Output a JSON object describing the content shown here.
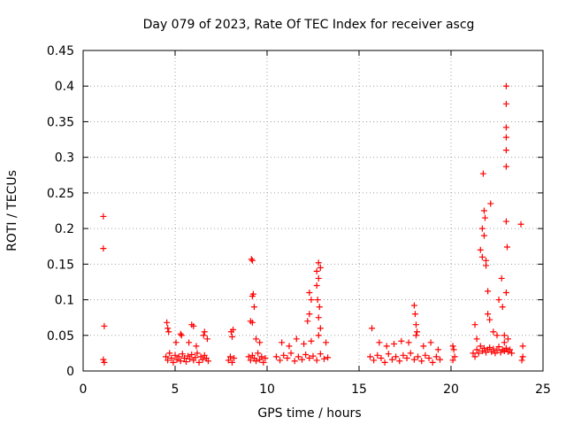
{
  "chart_data": {
    "type": "scatter",
    "title": "Day 079 of 2023, Rate Of TEC Index for receiver ascg",
    "xlabel": "GPS time / hours",
    "ylabel": "ROTI / TECUs",
    "xlim": [
      0,
      25
    ],
    "ylim": [
      0,
      0.45
    ],
    "xticks": [
      "0",
      "5",
      "10",
      "15",
      "20",
      "25"
    ],
    "yticks": [
      "0",
      "0.05",
      "0.1",
      "0.15",
      "0.2",
      "0.25",
      "0.3",
      "0.35",
      "0.4",
      "0.45"
    ],
    "grid": true,
    "marker": "+",
    "color": "#ff0000",
    "series": [
      {
        "x": [
          1.1,
          1.1,
          1.15,
          1.1,
          1.15,
          4.5,
          4.6,
          4.7,
          4.8,
          4.9,
          5.0,
          5.1,
          5.2,
          5.3,
          5.4,
          5.5,
          5.6,
          5.7,
          5.8,
          5.9,
          6.0,
          6.1,
          6.2,
          6.3,
          6.4,
          6.5,
          6.6,
          6.7,
          6.8,
          4.55,
          4.65,
          5.05,
          5.35,
          5.75,
          6.15,
          6.55,
          6.75,
          4.6,
          5.9,
          6.0,
          6.6,
          5.3,
          7.9,
          8.0,
          8.1,
          8.2,
          8.05,
          8.15,
          8.1,
          9.0,
          9.1,
          9.2,
          9.3,
          9.4,
          9.5,
          9.6,
          9.7,
          9.8,
          9.9,
          9.15,
          9.2,
          9.25,
          9.2,
          9.3,
          9.1,
          9.2,
          9.6,
          9.4,
          10.5,
          10.7,
          10.9,
          11.1,
          11.3,
          11.5,
          11.7,
          11.9,
          12.1,
          12.3,
          12.5,
          12.7,
          12.9,
          13.1,
          13.3,
          10.8,
          11.2,
          11.6,
          12.0,
          12.4,
          12.8,
          13.2,
          12.2,
          12.3,
          12.4,
          12.3,
          12.7,
          12.8,
          12.9,
          12.8,
          12.7,
          12.75,
          12.85,
          12.9,
          12.8,
          15.6,
          15.8,
          16.0,
          16.2,
          16.4,
          16.6,
          16.8,
          17.0,
          17.2,
          17.4,
          17.6,
          17.8,
          18.0,
          18.2,
          18.4,
          18.6,
          18.8,
          19.0,
          19.2,
          19.4,
          15.7,
          16.1,
          16.5,
          16.9,
          17.3,
          17.7,
          18.1,
          18.5,
          18.9,
          19.3,
          18.0,
          18.05,
          18.1,
          18.15,
          20.1,
          20.2,
          20.15,
          20.1,
          21.2,
          21.3,
          21.4,
          21.5,
          21.6,
          21.7,
          21.8,
          21.9,
          22.0,
          22.1,
          22.2,
          22.3,
          22.4,
          22.5,
          22.6,
          22.7,
          22.8,
          22.9,
          23.0,
          23.1,
          23.2,
          23.3,
          21.6,
          21.7,
          21.7,
          21.8,
          21.8,
          21.9,
          21.9,
          22.0,
          22.0,
          22.1,
          21.75,
          21.85,
          22.15,
          22.6,
          22.75,
          22.8,
          23.0,
          23.0,
          23.0,
          23.0,
          23.0,
          23.0,
          23.0,
          23.05,
          23.0,
          22.9,
          23.1,
          23.8,
          23.9,
          23.85,
          23.9,
          21.3,
          21.4,
          22.3,
          22.5,
          22.9
        ],
        "y": [
          0.217,
          0.172,
          0.063,
          0.016,
          0.012,
          0.02,
          0.015,
          0.025,
          0.018,
          0.012,
          0.022,
          0.016,
          0.02,
          0.014,
          0.024,
          0.018,
          0.013,
          0.021,
          0.017,
          0.023,
          0.015,
          0.019,
          0.025,
          0.012,
          0.02,
          0.016,
          0.022,
          0.018,
          0.014,
          0.068,
          0.055,
          0.04,
          0.05,
          0.04,
          0.035,
          0.05,
          0.045,
          0.06,
          0.065,
          0.063,
          0.055,
          0.052,
          0.015,
          0.02,
          0.012,
          0.018,
          0.055,
          0.058,
          0.048,
          0.02,
          0.015,
          0.022,
          0.018,
          0.014,
          0.025,
          0.016,
          0.02,
          0.012,
          0.018,
          0.157,
          0.155,
          0.108,
          0.105,
          0.09,
          0.07,
          0.068,
          0.04,
          0.045,
          0.02,
          0.015,
          0.022,
          0.018,
          0.025,
          0.014,
          0.02,
          0.016,
          0.023,
          0.018,
          0.021,
          0.015,
          0.024,
          0.017,
          0.019,
          0.04,
          0.035,
          0.045,
          0.038,
          0.042,
          0.05,
          0.04,
          0.07,
          0.08,
          0.1,
          0.11,
          0.12,
          0.13,
          0.145,
          0.152,
          0.14,
          0.1,
          0.09,
          0.06,
          0.075,
          0.02,
          0.015,
          0.022,
          0.018,
          0.012,
          0.024,
          0.016,
          0.02,
          0.014,
          0.022,
          0.018,
          0.025,
          0.016,
          0.02,
          0.014,
          0.022,
          0.018,
          0.012,
          0.02,
          0.016,
          0.06,
          0.04,
          0.035,
          0.038,
          0.042,
          0.04,
          0.05,
          0.035,
          0.04,
          0.03,
          0.092,
          0.08,
          0.065,
          0.055,
          0.015,
          0.02,
          0.03,
          0.035,
          0.025,
          0.02,
          0.03,
          0.025,
          0.035,
          0.028,
          0.032,
          0.026,
          0.03,
          0.033,
          0.027,
          0.031,
          0.025,
          0.029,
          0.034,
          0.026,
          0.03,
          0.028,
          0.032,
          0.027,
          0.03,
          0.025,
          0.17,
          0.16,
          0.2,
          0.19,
          0.225,
          0.155,
          0.148,
          0.112,
          0.08,
          0.072,
          0.277,
          0.215,
          0.235,
          0.1,
          0.13,
          0.09,
          0.4,
          0.375,
          0.342,
          0.328,
          0.31,
          0.287,
          0.21,
          0.174,
          0.11,
          0.05,
          0.045,
          0.206,
          0.035,
          0.015,
          0.02,
          0.065,
          0.045,
          0.055,
          0.05,
          0.04
        ]
      }
    ]
  }
}
